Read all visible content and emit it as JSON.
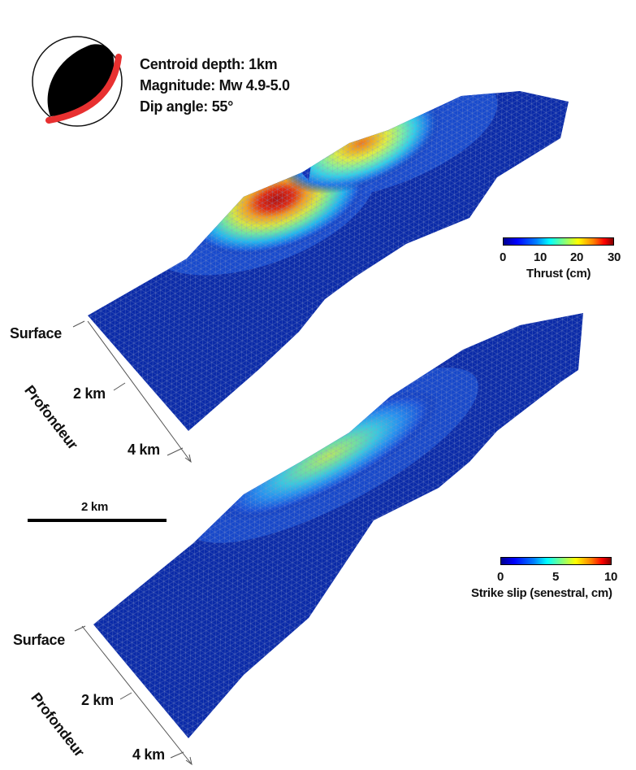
{
  "info": {
    "centroid": "Centroid depth: 1km",
    "magnitude": "Magnitude: Mw 4.9-5.0",
    "dip": "Dip angle: 55°"
  },
  "panel_top": {
    "surface_label": "Surface",
    "depth_2": "2 km",
    "depth_4": "4 km",
    "depth_axis": "Profondeur",
    "colorbar": {
      "title": "Thrust (cm)",
      "ticks": [
        "0",
        "10",
        "20",
        "30"
      ],
      "range": [
        0,
        30
      ]
    }
  },
  "panel_bottom": {
    "surface_label": "Surface",
    "depth_2": "2 km",
    "depth_4": "4 km",
    "depth_axis": "Profondeur",
    "colorbar": {
      "title": "Strike slip (senestral, cm)",
      "ticks": [
        "0",
        "5",
        "10"
      ],
      "range": [
        0,
        10
      ]
    }
  },
  "scale_bar": {
    "label": "2 km"
  },
  "colors": {
    "background_slip": "#0a2aa8",
    "mesh_line": "#7d8ac0",
    "beachball_compression": "#000000",
    "fault_plane": "#e83030"
  }
}
